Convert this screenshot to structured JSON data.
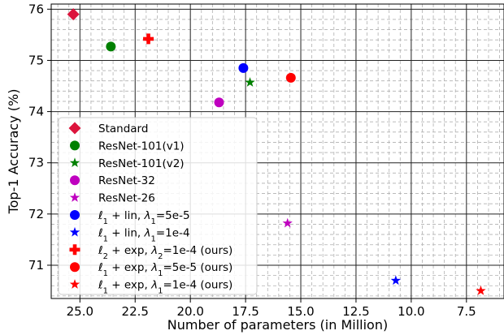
{
  "chart_data": {
    "type": "scatter",
    "title": "",
    "xlabel": "Number of parameters (in Million)",
    "ylabel": "Top-1 Accuracy (%)",
    "xlim": [
      26.3,
      5.8
    ],
    "ylim": [
      70.35,
      76.1
    ],
    "x_inverted": true,
    "x_ticks": [
      25.0,
      22.5,
      20.0,
      17.5,
      15.0,
      12.5,
      10.0,
      7.5
    ],
    "x_tick_labels": [
      "25.0",
      "22.5",
      "20.0",
      "17.5",
      "15.0",
      "12.5",
      "10.0",
      "7.5"
    ],
    "y_ticks": [
      71,
      72,
      73,
      74,
      75,
      76
    ],
    "y_tick_labels": [
      "71",
      "72",
      "73",
      "74",
      "75",
      "76"
    ],
    "grid": "major solid, minor dashed",
    "legend_placement": "lower-left",
    "series": [
      {
        "name": "Standard",
        "label_parts": [
          [
            "Standard",
            ""
          ]
        ],
        "marker": "diamond",
        "color": "#dc143c",
        "points": [
          [
            25.3,
            75.9
          ]
        ]
      },
      {
        "name": "ResNet-101(v1)",
        "label_parts": [
          [
            "ResNet-101(v1)",
            ""
          ]
        ],
        "marker": "circle",
        "color": "#008000",
        "points": [
          [
            23.6,
            75.27
          ]
        ]
      },
      {
        "name": "ResNet-101(v2)",
        "label_parts": [
          [
            "ResNet-101(v2)",
            ""
          ]
        ],
        "marker": "star",
        "color": "#008000",
        "points": [
          [
            17.3,
            74.57
          ]
        ]
      },
      {
        "name": "ResNet-32",
        "label_parts": [
          [
            "ResNet-32",
            ""
          ]
        ],
        "marker": "circle",
        "color": "#bf00bf",
        "points": [
          [
            18.7,
            74.18
          ]
        ]
      },
      {
        "name": "ResNet-26",
        "label_parts": [
          [
            "ResNet-26",
            ""
          ]
        ],
        "marker": "star",
        "color": "#bf00bf",
        "points": [
          [
            15.6,
            71.82
          ]
        ]
      },
      {
        "name": "ℓ1 + lin, λ1=5e-5",
        "label_parts": [
          [
            "ℓ",
            ""
          ],
          [
            "1",
            "sub"
          ],
          [
            " + lin, ",
            ""
          ],
          [
            "λ",
            "it"
          ],
          [
            "1",
            "sub"
          ],
          [
            "=5e-5",
            ""
          ]
        ],
        "marker": "circle",
        "color": "#0000ff",
        "points": [
          [
            17.6,
            74.85
          ]
        ]
      },
      {
        "name": "ℓ1 + lin, λ1=1e-4",
        "label_parts": [
          [
            "ℓ",
            ""
          ],
          [
            "1",
            "sub"
          ],
          [
            " + lin, ",
            ""
          ],
          [
            "λ",
            "it"
          ],
          [
            "1",
            "sub"
          ],
          [
            "=1e-4",
            ""
          ]
        ],
        "marker": "star",
        "color": "#0000ff",
        "points": [
          [
            10.7,
            70.7
          ]
        ]
      },
      {
        "name": "ℓ2 + exp, λ2=1e-4 (ours)",
        "label_parts": [
          [
            "ℓ",
            ""
          ],
          [
            "2",
            "sub"
          ],
          [
            " + exp, ",
            ""
          ],
          [
            "λ",
            "it"
          ],
          [
            "2",
            "sub"
          ],
          [
            "=1e-4 (ours)",
            ""
          ]
        ],
        "marker": "plus",
        "color": "#ff0000",
        "points": [
          [
            21.9,
            75.42
          ]
        ]
      },
      {
        "name": "ℓ1 + exp, λ1=5e-5 (ours)",
        "label_parts": [
          [
            "ℓ",
            ""
          ],
          [
            "1",
            "sub"
          ],
          [
            " + exp, ",
            ""
          ],
          [
            "λ",
            "it"
          ],
          [
            "1",
            "sub"
          ],
          [
            "=5e-5 (ours)",
            ""
          ]
        ],
        "marker": "circle",
        "color": "#ff0000",
        "points": [
          [
            15.45,
            74.66
          ]
        ]
      },
      {
        "name": "ℓ1 + exp, λ1=1e-4 (ours)",
        "label_parts": [
          [
            "ℓ",
            ""
          ],
          [
            "1",
            "sub"
          ],
          [
            " + exp, ",
            ""
          ],
          [
            "λ",
            "it"
          ],
          [
            "1",
            "sub"
          ],
          [
            "=1e-4 (ours)",
            ""
          ]
        ],
        "marker": "star",
        "color": "#ff0000",
        "points": [
          [
            6.85,
            70.5
          ]
        ]
      }
    ]
  }
}
